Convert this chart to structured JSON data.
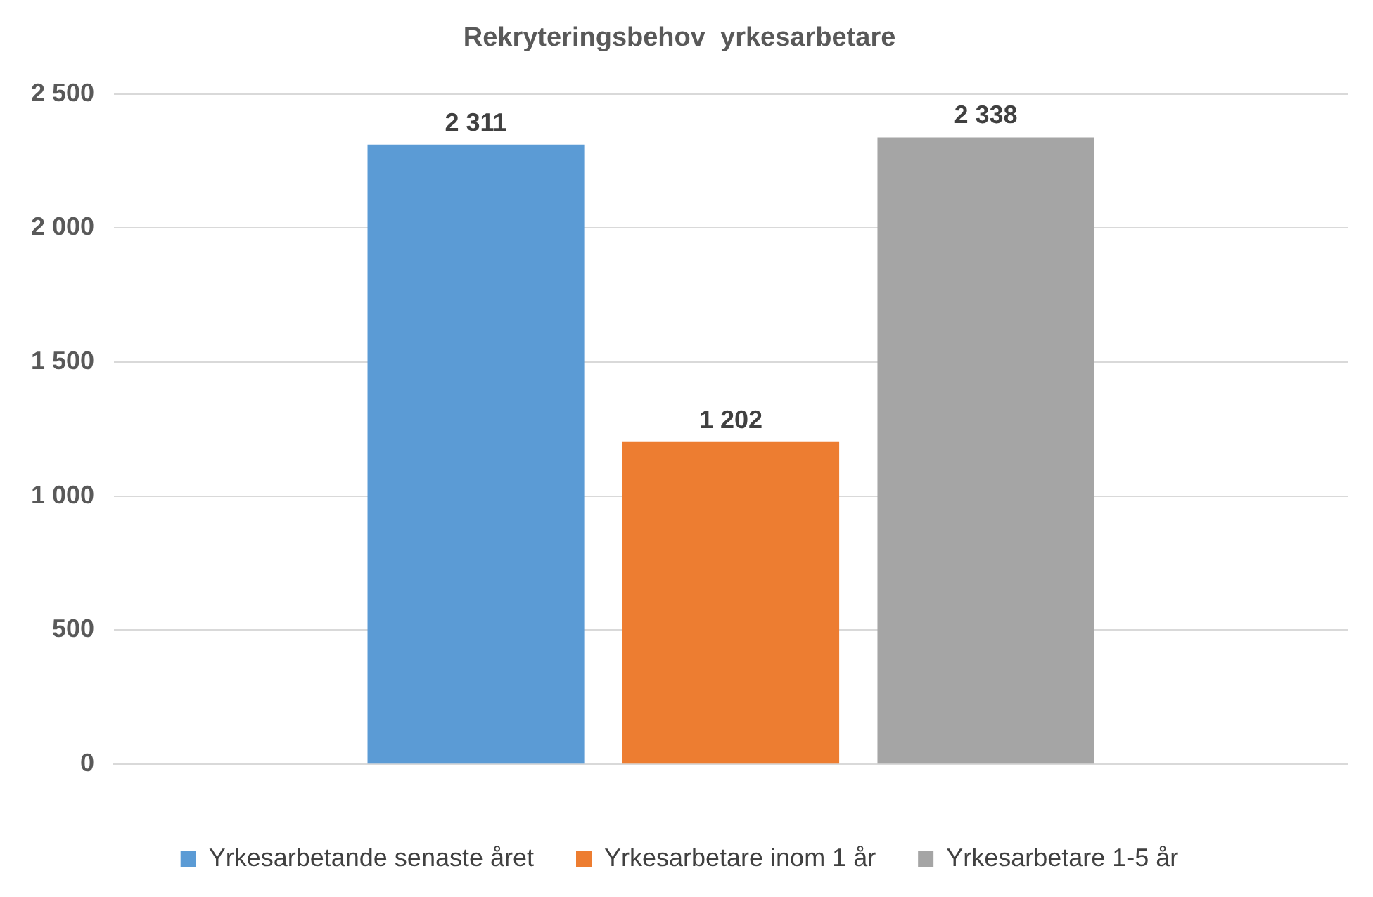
{
  "chart_data": {
    "type": "bar",
    "title": "Rekryteringsbehov  yrkesarbetare",
    "categories": [
      null
    ],
    "series": [
      {
        "name": "Yrkesarbetande senaste året",
        "color": "#5b9bd5",
        "values": [
          2311
        ],
        "value_labels": [
          "2 311"
        ]
      },
      {
        "name": "Yrkesarbetare inom 1 år",
        "color": "#ed7d31",
        "values": [
          1202
        ],
        "value_labels": [
          "1 202"
        ]
      },
      {
        "name": "Yrkesarbetare 1-5 år",
        "color": "#a5a5a5",
        "values": [
          2338
        ],
        "value_labels": [
          "2 338"
        ]
      }
    ],
    "ylim": [
      0,
      2500
    ],
    "yticks": [
      0,
      500,
      {
        "value": 1000,
        "label": "1 000"
      },
      {
        "value": 1500,
        "label": "1 500"
      },
      {
        "value": 2000,
        "label": "2 000"
      },
      {
        "value": 2500,
        "label": "2 500"
      }
    ],
    "grid": "y",
    "legend": "bottom"
  }
}
